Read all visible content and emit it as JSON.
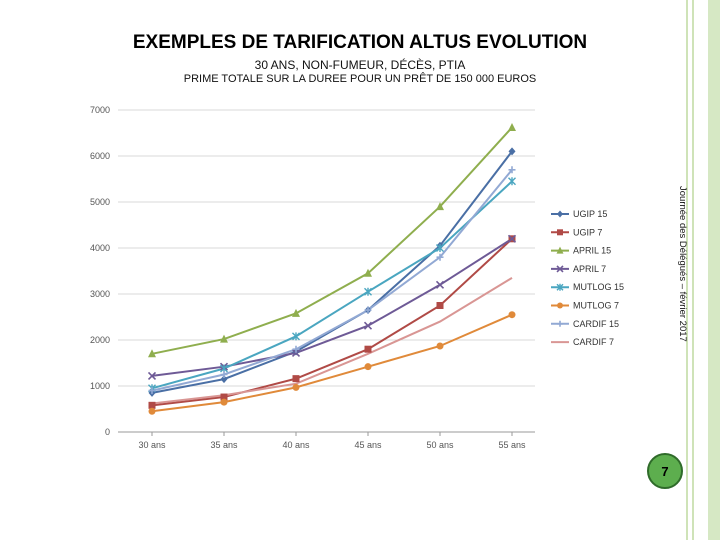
{
  "slide": {
    "title": "EXEMPLES DE TARIFICATION ALTUS EVOLUTION",
    "subtitle": "30 ANS, NON-FUMEUR, DÉCÈS, PTIA",
    "subtitle2": "PRIME TOTALE SUR LA DUREE POUR UN PRÊT DE 150 000 EUROS",
    "side_note": "Journée des Délégués – février 2017",
    "page_number": "7"
  },
  "chart_data": {
    "type": "line",
    "title": "",
    "xlabel": "",
    "ylabel": "",
    "categories": [
      "30 ans",
      "35 ans",
      "40 ans",
      "45 ans",
      "50 ans",
      "55 ans"
    ],
    "ylim": [
      0,
      7000
    ],
    "yticks": [
      0,
      1000,
      2000,
      3000,
      4000,
      5000,
      6000,
      7000
    ],
    "grid": "horizontal",
    "legend": "right",
    "series": [
      {
        "name": "UGIP 15",
        "color": "#4a6fa5",
        "marker": "diamond",
        "values": [
          850,
          1150,
          1750,
          2650,
          4050,
          6100
        ]
      },
      {
        "name": "UGIP 7",
        "color": "#b04a46",
        "marker": "square",
        "values": [
          580,
          760,
          1160,
          1800,
          2750,
          4200
        ]
      },
      {
        "name": "APRIL 15",
        "color": "#8fae4e",
        "marker": "triangle",
        "values": [
          1700,
          2020,
          2580,
          3450,
          4900,
          6620
        ]
      },
      {
        "name": "APRIL 7",
        "color": "#6e5a96",
        "marker": "x",
        "values": [
          1220,
          1420,
          1720,
          2310,
          3200,
          4200
        ]
      },
      {
        "name": "MUTLOG 15",
        "color": "#4aa6c0",
        "marker": "star",
        "values": [
          950,
          1380,
          2080,
          3050,
          4000,
          5450
        ]
      },
      {
        "name": "MUTLOG 7",
        "color": "#e08a3a",
        "marker": "circle",
        "values": [
          450,
          650,
          970,
          1420,
          1870,
          2550
        ]
      },
      {
        "name": "CARDIF 15",
        "color": "#92a9d4",
        "marker": "plus",
        "values": [
          900,
          1250,
          1800,
          2650,
          3800,
          5700
        ]
      },
      {
        "name": "CARDIF 7",
        "color": "#d99694",
        "marker": "none",
        "values": [
          620,
          800,
          1050,
          1700,
          2400,
          3350
        ]
      }
    ]
  }
}
